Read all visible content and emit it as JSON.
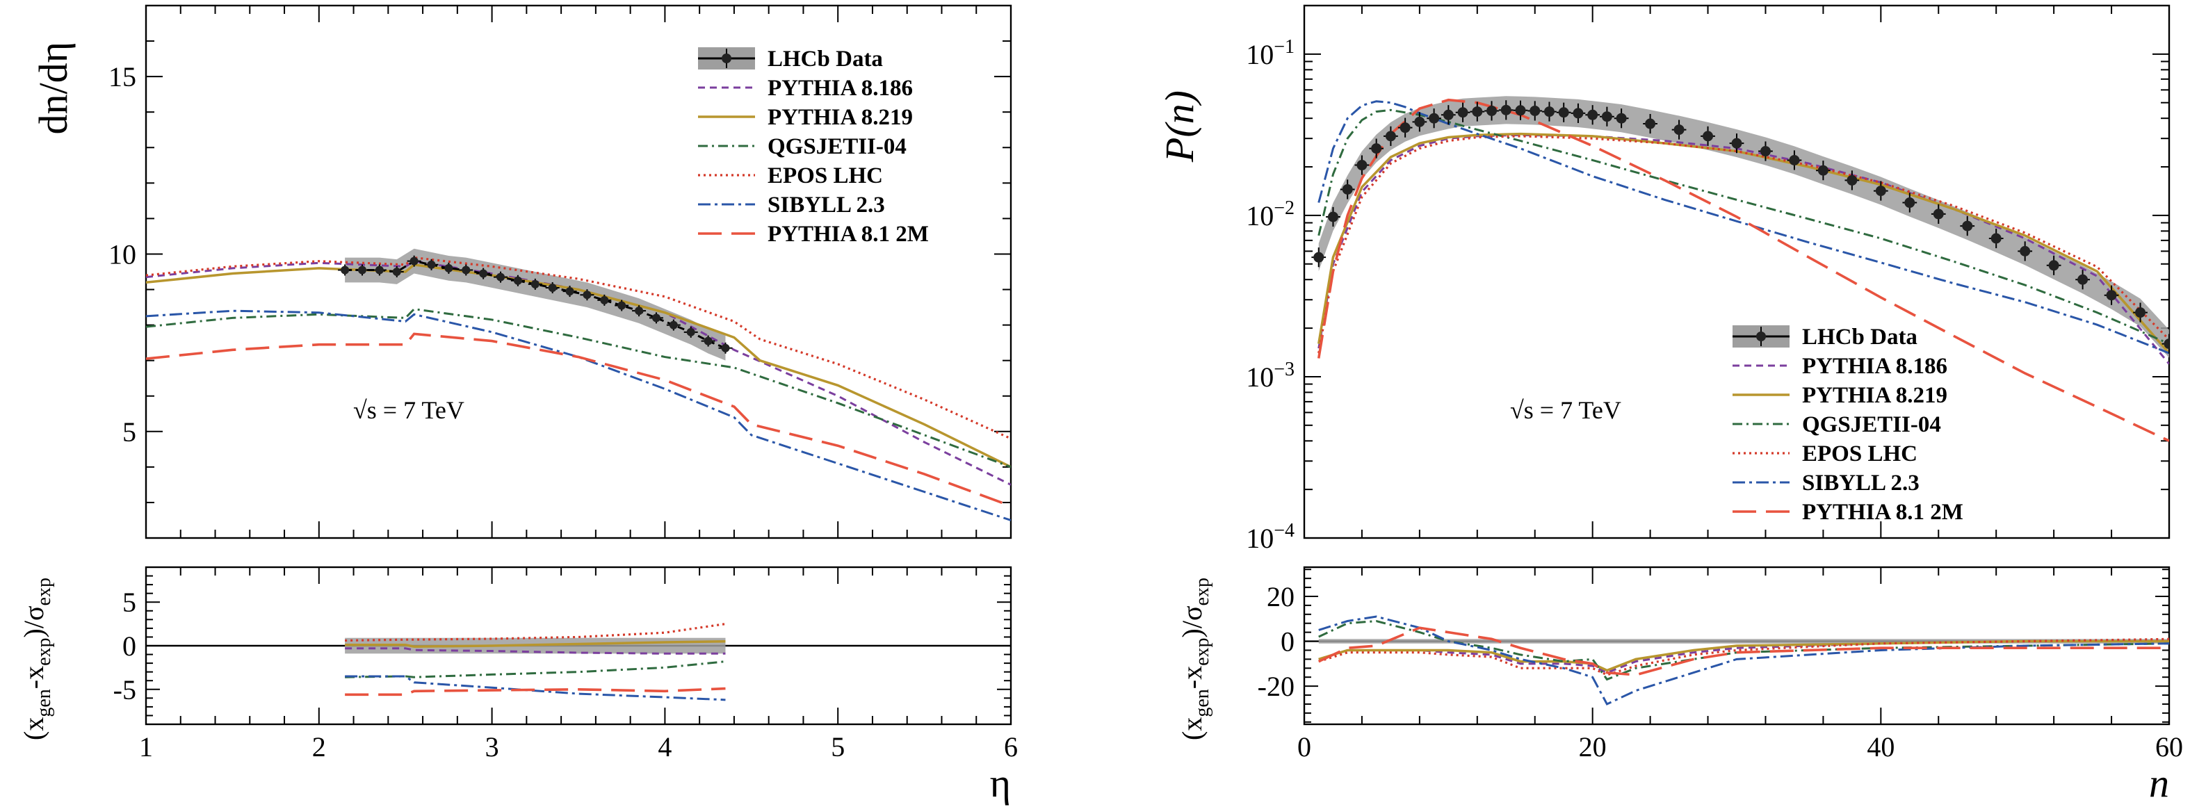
{
  "colors": {
    "data": "#222222",
    "band": "#9e9e9e",
    "pythia8186": "#7b3f9e",
    "pythia8219": "#b8962e",
    "qgsjet": "#2f6b3f",
    "epos": "#d43a2a",
    "sibyll": "#2a56a8",
    "pythia2m": "#e8533f"
  },
  "chart_data": [
    {
      "type": "line",
      "ylabel": "dn/dη",
      "xlabel": "η",
      "xlim": [
        1,
        6
      ],
      "ylim": [
        2,
        17
      ],
      "yscale": "linear",
      "xticks": [
        "1",
        "2",
        "3",
        "4",
        "5",
        "6"
      ],
      "yticks": [
        "5",
        "10",
        "15"
      ],
      "annotation": "√s = 7 TeV",
      "legend": [
        "LHCb Data",
        "PYTHIA 8.186",
        "PYTHIA 8.219",
        "QGSJETII-04",
        "EPOS LHC",
        "SIBYLL 2.3",
        "PYTHIA 8.1 2M"
      ],
      "legend_position": "top-right",
      "data": {
        "name": "LHCb Data",
        "x": [
          2.15,
          2.25,
          2.35,
          2.45,
          2.55,
          2.65,
          2.75,
          2.85,
          2.95,
          3.05,
          3.15,
          3.25,
          3.35,
          3.45,
          3.55,
          3.65,
          3.75,
          3.85,
          3.95,
          4.05,
          4.15,
          4.25,
          4.35
        ],
        "y": [
          9.55,
          9.55,
          9.55,
          9.5,
          9.8,
          9.7,
          9.6,
          9.55,
          9.45,
          9.35,
          9.25,
          9.15,
          9.05,
          8.95,
          8.85,
          8.7,
          8.55,
          8.4,
          8.2,
          8.0,
          7.8,
          7.55,
          7.35
        ],
        "band_halfwidth": 0.35
      },
      "series": [
        {
          "name": "PYTHIA 8.186",
          "x": [
            1.0,
            1.5,
            2.0,
            2.5,
            2.55,
            3.0,
            3.5,
            4.0,
            4.4,
            5.0,
            5.5,
            6.0
          ],
          "y": [
            9.35,
            9.6,
            9.75,
            9.65,
            9.8,
            9.45,
            9.0,
            8.35,
            7.3,
            6.0,
            4.7,
            3.5
          ]
        },
        {
          "name": "PYTHIA 8.219",
          "x": [
            1.0,
            1.5,
            2.0,
            2.5,
            2.55,
            3.0,
            3.5,
            4.0,
            4.4,
            4.55,
            5.0,
            5.5,
            6.0
          ],
          "y": [
            9.2,
            9.45,
            9.6,
            9.5,
            9.7,
            9.4,
            9.0,
            8.35,
            7.65,
            7.0,
            6.3,
            5.2,
            4.0
          ]
        },
        {
          "name": "QGSJETII-04",
          "x": [
            1.0,
            1.5,
            2.0,
            2.5,
            2.55,
            3.0,
            3.5,
            4.0,
            4.4,
            5.0,
            5.5,
            6.0
          ],
          "y": [
            7.95,
            8.2,
            8.3,
            8.2,
            8.45,
            8.15,
            7.65,
            7.1,
            6.8,
            5.8,
            4.9,
            4.0
          ]
        },
        {
          "name": "EPOS LHC",
          "x": [
            1.0,
            1.5,
            2.0,
            2.5,
            2.55,
            3.0,
            3.5,
            4.0,
            4.4,
            4.55,
            5.0,
            5.5,
            6.0
          ],
          "y": [
            9.4,
            9.65,
            9.8,
            9.7,
            9.9,
            9.65,
            9.3,
            8.8,
            8.1,
            7.6,
            6.9,
            5.9,
            4.8
          ]
        },
        {
          "name": "SIBYLL 2.3",
          "x": [
            1.0,
            1.5,
            2.0,
            2.5,
            2.55,
            3.0,
            3.5,
            4.0,
            4.4,
            4.5,
            5.0,
            5.5,
            6.0
          ],
          "y": [
            8.25,
            8.4,
            8.35,
            8.1,
            8.3,
            7.8,
            7.1,
            6.2,
            5.4,
            4.9,
            4.1,
            3.3,
            2.5
          ]
        },
        {
          "name": "PYTHIA 8.1 2M",
          "x": [
            1.0,
            1.5,
            2.0,
            2.5,
            2.55,
            3.0,
            3.5,
            4.0,
            4.4,
            4.5,
            5.0,
            5.5,
            6.0
          ],
          "y": [
            7.05,
            7.3,
            7.45,
            7.45,
            7.75,
            7.55,
            7.1,
            6.45,
            5.7,
            5.2,
            4.6,
            3.8,
            2.9
          ]
        }
      ],
      "ratio": {
        "ylabel_parts": [
          "(x",
          "gen",
          "-x",
          "exp",
          ")/σ",
          "exp"
        ],
        "ylim": [
          -9,
          9
        ],
        "yticks": [
          "-5",
          "0",
          "5"
        ],
        "x": [
          2.15,
          2.5,
          2.55,
          3.0,
          3.5,
          4.0,
          4.35
        ],
        "band": [
          -0.9,
          0.9
        ],
        "series": [
          {
            "name": "PYTHIA 8.186",
            "y": [
              -0.3,
              -0.3,
              -0.5,
              -0.6,
              -0.8,
              -0.9,
              -0.9
            ]
          },
          {
            "name": "PYTHIA 8.219",
            "y": [
              0.1,
              0.1,
              -0.1,
              0.0,
              0.2,
              0.4,
              0.5
            ]
          },
          {
            "name": "QGSJETII-04",
            "y": [
              -3.6,
              -3.5,
              -3.6,
              -3.3,
              -3.0,
              -2.5,
              -1.8
            ]
          },
          {
            "name": "EPOS LHC",
            "y": [
              0.6,
              0.7,
              0.7,
              0.8,
              1.0,
              1.5,
              2.5
            ]
          },
          {
            "name": "SIBYLL 2.3",
            "y": [
              -3.5,
              -3.5,
              -4.2,
              -4.8,
              -5.5,
              -5.9,
              -6.2
            ]
          },
          {
            "name": "PYTHIA 8.1 2M",
            "y": [
              -5.6,
              -5.6,
              -5.2,
              -5.1,
              -5.0,
              -5.2,
              -4.9
            ]
          }
        ]
      }
    },
    {
      "type": "line",
      "ylabel": "P(n)",
      "xlabel": "n",
      "xlim": [
        0,
        60
      ],
      "ylim": [
        0.0001,
        0.2
      ],
      "yscale": "log",
      "xticks": [
        "0",
        "20",
        "40",
        "60"
      ],
      "yticks": [
        {
          "value": 0.001,
          "base": "10",
          "exp": "−3"
        },
        {
          "value": 0.01,
          "base": "10",
          "exp": "−2"
        },
        {
          "value": 0.1,
          "base": "10",
          "exp": "−1"
        }
      ],
      "ytick_bottom": {
        "base": "10",
        "exp": "−4"
      },
      "annotation": "√s = 7 TeV",
      "legend": [
        "LHCb Data",
        "PYTHIA 8.186",
        "PYTHIA 8.219",
        "QGSJETII-04",
        "EPOS LHC",
        "SIBYLL 2.3",
        "PYTHIA 8.1 2M"
      ],
      "legend_position": "bottom-right",
      "data": {
        "name": "LHCb Data",
        "x": [
          1,
          2,
          3,
          4,
          5,
          6,
          7,
          8,
          9,
          10,
          11,
          12,
          13,
          14,
          15,
          16,
          17,
          18,
          19,
          20,
          21,
          22,
          24,
          26,
          28,
          30,
          32,
          34,
          36,
          38,
          40,
          42,
          44,
          46,
          48,
          50,
          52,
          54,
          56,
          58,
          60
        ],
        "y": [
          0.0055,
          0.0098,
          0.0145,
          0.0205,
          0.026,
          0.031,
          0.035,
          0.038,
          0.04,
          0.042,
          0.0435,
          0.044,
          0.0445,
          0.045,
          0.0448,
          0.0445,
          0.044,
          0.0435,
          0.043,
          0.042,
          0.041,
          0.04,
          0.037,
          0.034,
          0.031,
          0.028,
          0.025,
          0.022,
          0.019,
          0.0165,
          0.0142,
          0.012,
          0.0102,
          0.0086,
          0.0072,
          0.006,
          0.0049,
          0.004,
          0.0032,
          0.0025,
          0.0016
        ]
      },
      "series": [
        {
          "name": "PYTHIA 8.186",
          "x": [
            1,
            2,
            4,
            6,
            8,
            10,
            12,
            15,
            20,
            25,
            30,
            35,
            40,
            45,
            50,
            55,
            60
          ],
          "y": [
            0.0015,
            0.005,
            0.014,
            0.022,
            0.027,
            0.03,
            0.031,
            0.0315,
            0.031,
            0.029,
            0.026,
            0.021,
            0.016,
            0.011,
            0.0072,
            0.0042,
            0.0012
          ]
        },
        {
          "name": "PYTHIA 8.219",
          "x": [
            1,
            2,
            4,
            6,
            8,
            10,
            12,
            15,
            20,
            25,
            30,
            35,
            40,
            45,
            50,
            55,
            60
          ],
          "y": [
            0.0016,
            0.0055,
            0.015,
            0.023,
            0.028,
            0.0305,
            0.0315,
            0.032,
            0.031,
            0.028,
            0.025,
            0.02,
            0.0155,
            0.011,
            0.0075,
            0.0045,
            0.0014
          ]
        },
        {
          "name": "QGSJETII-04",
          "x": [
            1,
            2,
            3,
            4,
            5,
            6,
            8,
            10,
            12,
            15,
            20,
            25,
            30,
            35,
            40,
            45,
            50,
            55,
            60
          ],
          "y": [
            0.0075,
            0.018,
            0.03,
            0.039,
            0.044,
            0.045,
            0.042,
            0.038,
            0.034,
            0.029,
            0.022,
            0.0165,
            0.0125,
            0.0095,
            0.0072,
            0.0052,
            0.0037,
            0.0025,
            0.0016
          ]
        },
        {
          "name": "EPOS LHC",
          "x": [
            1,
            2,
            4,
            6,
            8,
            10,
            12,
            15,
            20,
            25,
            30,
            35,
            40,
            45,
            50,
            55,
            60
          ],
          "y": [
            0.0014,
            0.0045,
            0.013,
            0.021,
            0.026,
            0.029,
            0.0305,
            0.031,
            0.03,
            0.028,
            0.025,
            0.0205,
            0.016,
            0.0115,
            0.0078,
            0.0048,
            0.0017
          ]
        },
        {
          "name": "SIBYLL 2.3",
          "x": [
            1,
            2,
            3,
            4,
            5,
            6,
            7,
            8,
            10,
            12,
            15,
            20,
            25,
            30,
            35,
            40,
            45,
            50,
            55,
            60
          ],
          "y": [
            0.012,
            0.026,
            0.04,
            0.048,
            0.051,
            0.05,
            0.047,
            0.043,
            0.037,
            0.032,
            0.026,
            0.0175,
            0.0125,
            0.0092,
            0.0068,
            0.0051,
            0.0038,
            0.0029,
            0.0021,
            0.0014
          ]
        },
        {
          "name": "PYTHIA 8.1 2M",
          "x": [
            1,
            2,
            3,
            4,
            6,
            8,
            10,
            12,
            15,
            20,
            25,
            30,
            35,
            40,
            45,
            50,
            55,
            60
          ],
          "y": [
            0.0013,
            0.0045,
            0.01,
            0.017,
            0.032,
            0.046,
            0.052,
            0.05,
            0.042,
            0.027,
            0.0165,
            0.0098,
            0.0055,
            0.0031,
            0.0018,
            0.00105,
            0.00065,
            0.0004
          ]
        }
      ],
      "ratio": {
        "ylabel_parts": [
          "(x",
          "gen",
          "-x",
          "exp",
          ")/σ",
          "exp"
        ],
        "ylim": [
          -37,
          33
        ],
        "yticks": [
          "-20",
          "0",
          "20"
        ],
        "x": [
          1,
          3,
          5,
          8,
          10,
          13,
          15,
          18,
          20,
          21,
          23,
          27,
          30,
          40,
          50,
          60
        ],
        "band": [
          -1,
          1
        ],
        "series": [
          {
            "name": "PYTHIA 8.186",
            "y": [
              -8,
              -4,
              -4,
              -4,
              -5,
              -6,
              -10,
              -10,
              -11,
              -14,
              -9,
              -5,
              -3,
              -1,
              0,
              0
            ]
          },
          {
            "name": "PYTHIA 8.219",
            "y": [
              -8,
              -4,
              -4,
              -4,
              -4,
              -5,
              -9,
              -9,
              -10,
              -13,
              -8,
              -4,
              -2,
              -1,
              0,
              0
            ]
          },
          {
            "name": "QGSJETII-04",
            "y": [
              2,
              8,
              9,
              4,
              0,
              -3,
              -6,
              -9,
              -8,
              -17,
              -12,
              -8,
              -5,
              -3,
              -2,
              -1
            ]
          },
          {
            "name": "EPOS LHC",
            "y": [
              -9,
              -5,
              -5,
              -5,
              -6,
              -7,
              -12,
              -12,
              -12,
              -15,
              -11,
              -6,
              -4,
              -1,
              0,
              1
            ]
          },
          {
            "name": "SIBYLL 2.3",
            "y": [
              5,
              9,
              11,
              6,
              0,
              -4,
              -8,
              -12,
              -16,
              -28,
              -22,
              -14,
              -8,
              -4,
              -2,
              -1
            ]
          },
          {
            "name": "PYTHIA 8.1 2M",
            "y": [
              -9,
              -3,
              -2,
              6,
              4,
              1,
              -3,
              -8,
              -10,
              -14,
              -15,
              -8,
              -5,
              -3,
              -3,
              -3
            ]
          }
        ]
      }
    }
  ]
}
